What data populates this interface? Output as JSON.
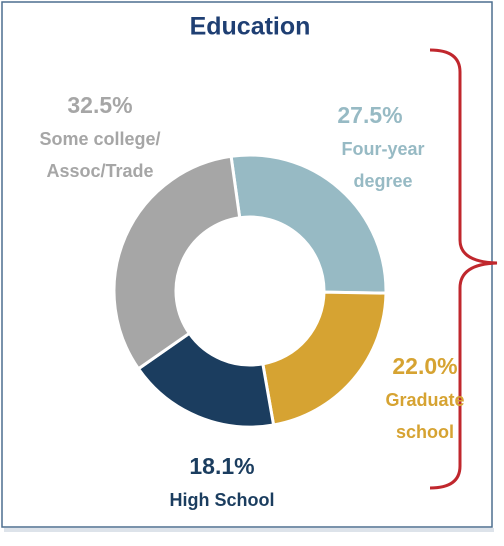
{
  "chart_data": {
    "type": "donut",
    "title": "Education",
    "categories": [
      [
        "Four-year",
        "degree"
      ],
      [
        "Graduate",
        "school"
      ],
      [
        "High School"
      ],
      [
        "Some college/",
        "Assoc/Trade"
      ]
    ],
    "values": [
      27.5,
      22.0,
      18.1,
      32.5
    ],
    "value_labels": [
      "27.5%",
      "22.0%",
      "18.1%",
      "32.5%"
    ],
    "colors": [
      "#97bac4",
      "#d6a332",
      "#1b3d5f",
      "#a6a6a6"
    ]
  }
}
